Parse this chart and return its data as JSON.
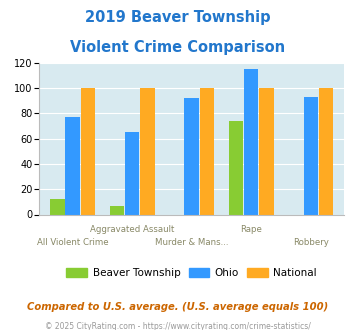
{
  "title_line1": "2019 Beaver Township",
  "title_line2": "Violent Crime Comparison",
  "title_color": "#2277cc",
  "categories": [
    "All Violent Crime",
    "Aggravated Assault",
    "Murder & Mans...",
    "Rape",
    "Robbery"
  ],
  "series": {
    "Beaver Township": [
      12,
      7,
      0,
      74,
      0
    ],
    "Ohio": [
      77,
      65,
      92,
      115,
      93
    ],
    "National": [
      100,
      100,
      100,
      100,
      100
    ]
  },
  "colors": {
    "Beaver Township": "#88cc33",
    "Ohio": "#3399ff",
    "National": "#ffaa22"
  },
  "ylim": [
    0,
    120
  ],
  "yticks": [
    0,
    20,
    40,
    60,
    80,
    100,
    120
  ],
  "bg_color": "#d8eaf0",
  "footnote": "Compared to U.S. average. (U.S. average equals 100)",
  "footnote2": "© 2025 CityRating.com - https://www.cityrating.com/crime-statistics/",
  "footnote_color": "#cc6600",
  "footnote2_color": "#999999"
}
